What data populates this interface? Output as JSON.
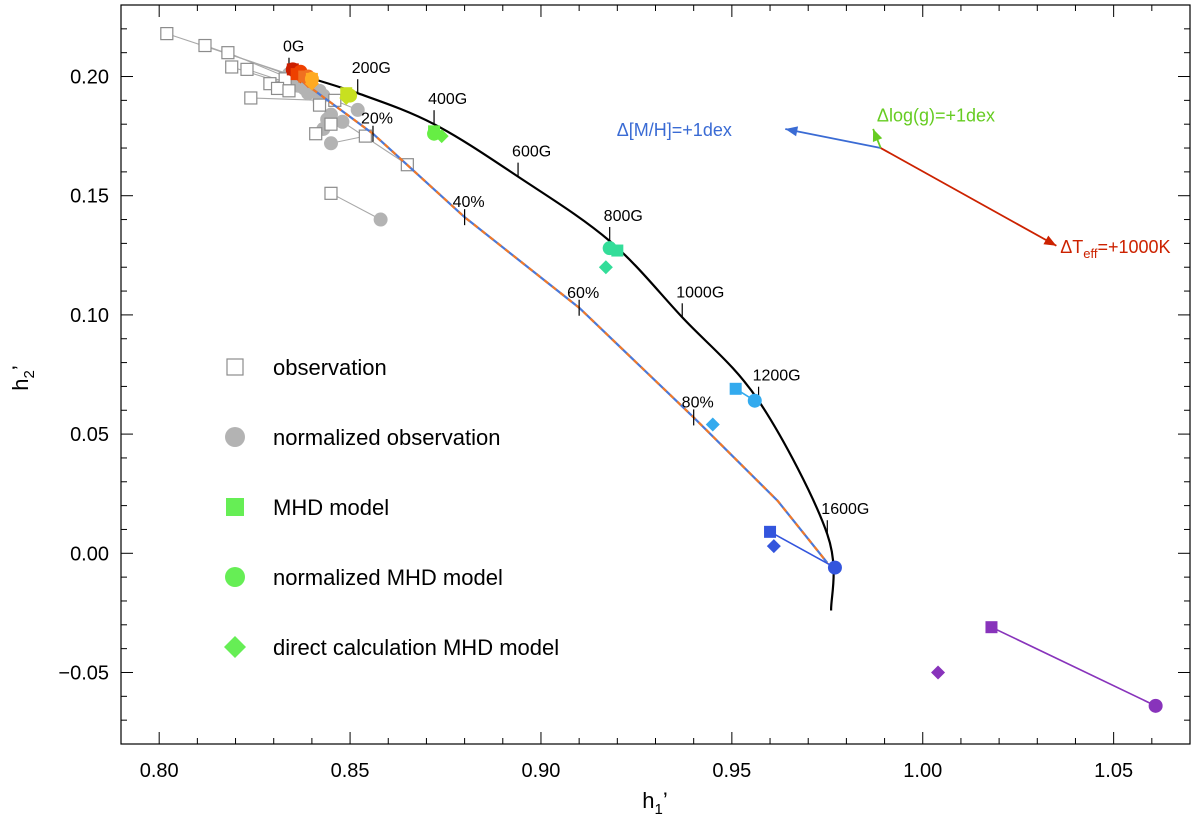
{
  "chart_data": {
    "type": "scatter",
    "xlabel": "h",
    "xlabel_sub": "1",
    "xlabel_prime": "’",
    "ylabel": "h",
    "ylabel_sub": "2",
    "ylabel_prime": "’",
    "xlim": [
      0.79,
      1.07
    ],
    "ylim": [
      -0.08,
      0.23
    ],
    "xticks": [
      0.8,
      0.85,
      0.9,
      0.95,
      1.0,
      1.05
    ],
    "xtick_labels": [
      "0.80",
      "0.85",
      "0.90",
      "0.95",
      "1.00",
      "1.05"
    ],
    "yticks": [
      -0.05,
      0.0,
      0.05,
      0.1,
      0.15,
      0.2
    ],
    "ytick_labels": [
      "−0.05",
      "0.00",
      "0.05",
      "0.10",
      "0.15",
      "0.20"
    ],
    "colors": {
      "observation": "#8c8c8c",
      "normalized_observation": "#b3b3b3",
      "legend_green": "#66ee55",
      "field_curve": "#000000",
      "fill_curve_blue": "#4a78d8",
      "fill_curve_orange": "#f07828",
      "arrow_metal": "#3a6bd4",
      "arrow_logg": "#66cc22",
      "arrow_teff": "#cc2200"
    },
    "observation_pairs": [
      {
        "obs": [
          0.802,
          0.218
        ],
        "norm": [
          0.834,
          0.201
        ]
      },
      {
        "obs": [
          0.812,
          0.213
        ],
        "norm": [
          0.835,
          0.2
        ]
      },
      {
        "obs": [
          0.818,
          0.21
        ],
        "norm": [
          0.836,
          0.198
        ]
      },
      {
        "obs": [
          0.819,
          0.204
        ],
        "norm": [
          0.835,
          0.196
        ]
      },
      {
        "obs": [
          0.823,
          0.203
        ],
        "norm": [
          0.838,
          0.195
        ]
      },
      {
        "obs": [
          0.829,
          0.197
        ],
        "norm": [
          0.839,
          0.193
        ]
      },
      {
        "obs": [
          0.833,
          0.199
        ],
        "norm": [
          0.84,
          0.196
        ]
      },
      {
        "obs": [
          0.831,
          0.195
        ],
        "norm": [
          0.842,
          0.194
        ]
      },
      {
        "obs": [
          0.834,
          0.194
        ],
        "norm": [
          0.843,
          0.192
        ]
      },
      {
        "obs": [
          0.824,
          0.191
        ],
        "norm": [
          0.842,
          0.19
        ]
      },
      {
        "obs": [
          0.846,
          0.19
        ],
        "norm": [
          0.852,
          0.186
        ]
      },
      {
        "obs": [
          0.842,
          0.188
        ],
        "norm": [
          0.845,
          0.184
        ]
      },
      {
        "obs": [
          0.841,
          0.176
        ],
        "norm": [
          0.843,
          0.178
        ]
      },
      {
        "obs": [
          0.845,
          0.18
        ],
        "norm": [
          0.844,
          0.182
        ]
      },
      {
        "obs": [
          0.854,
          0.175
        ],
        "norm": [
          0.845,
          0.172
        ]
      },
      {
        "obs": [
          0.865,
          0.163
        ],
        "norm": [
          0.848,
          0.181
        ]
      },
      {
        "obs": [
          0.845,
          0.151
        ],
        "norm": [
          0.858,
          0.14
        ]
      }
    ],
    "field_curve_label_points": [
      {
        "label": "0G",
        "x": 0.834,
        "y": 0.202
      },
      {
        "label": "200G",
        "x": 0.852,
        "y": 0.193
      },
      {
        "label": "400G",
        "x": 0.872,
        "y": 0.18
      },
      {
        "label": "600G",
        "x": 0.894,
        "y": 0.158
      },
      {
        "label": "800G",
        "x": 0.918,
        "y": 0.131
      },
      {
        "label": "1000G",
        "x": 0.937,
        "y": 0.099
      },
      {
        "label": "1200G",
        "x": 0.957,
        "y": 0.064
      },
      {
        "label": "1600G",
        "x": 0.975,
        "y": 0.008
      }
    ],
    "field_curve_end": [
      0.976,
      -0.024
    ],
    "fill_curve": [
      [
        0.834,
        0.202
      ],
      [
        0.856,
        0.176
      ],
      [
        0.88,
        0.141
      ],
      [
        0.91,
        0.103
      ],
      [
        0.94,
        0.057
      ],
      [
        0.962,
        0.022
      ],
      [
        0.975,
        -0.004
      ]
    ],
    "fill_tick_labels": [
      {
        "label": "20%",
        "x": 0.856,
        "y": 0.176
      },
      {
        "label": "40%",
        "x": 0.88,
        "y": 0.141
      },
      {
        "label": "60%",
        "x": 0.91,
        "y": 0.103
      },
      {
        "label": "80%",
        "x": 0.94,
        "y": 0.057
      }
    ],
    "models": [
      {
        "color": "#cc1f00",
        "mhd": [
          0.835,
          0.203
        ],
        "norm": [
          0.835,
          0.203
        ],
        "direct": [
          0.835,
          0.202
        ]
      },
      {
        "color": "#ee4000",
        "mhd": [
          0.836,
          0.201
        ],
        "norm": [
          0.837,
          0.202
        ],
        "direct": [
          0.837,
          0.2
        ]
      },
      {
        "color": "#f07020",
        "mhd": [
          0.838,
          0.2
        ],
        "norm": [
          0.839,
          0.2
        ],
        "direct": [
          0.839,
          0.198
        ]
      },
      {
        "color": "#ffaa22",
        "mhd": [
          0.84,
          0.199
        ],
        "norm": [
          0.84,
          0.199
        ],
        "direct": [
          0.84,
          0.197
        ]
      },
      {
        "color": "#c8e020",
        "mhd": [
          0.849,
          0.193
        ],
        "norm": [
          0.85,
          0.192
        ],
        "direct": [
          0.849,
          0.191
        ]
      },
      {
        "color": "#66ee44",
        "mhd": [
          0.872,
          0.177
        ],
        "norm": [
          0.872,
          0.176
        ],
        "direct": [
          0.874,
          0.175
        ]
      },
      {
        "color": "#33dd99",
        "mhd": [
          0.92,
          0.127
        ],
        "norm": [
          0.918,
          0.128
        ],
        "direct": [
          0.917,
          0.12
        ]
      },
      {
        "color": "#33aaee",
        "mhd": [
          0.951,
          0.069
        ],
        "norm": [
          0.956,
          0.064
        ],
        "direct": [
          0.945,
          0.054
        ]
      },
      {
        "color": "#3355dd",
        "mhd": [
          0.96,
          0.009
        ],
        "norm": [
          0.977,
          -0.006
        ],
        "direct": [
          0.961,
          0.003
        ]
      },
      {
        "color": "#8833bb",
        "mhd": [
          1.018,
          -0.031
        ],
        "norm": [
          1.061,
          -0.064
        ],
        "direct": [
          1.004,
          -0.05
        ]
      }
    ],
    "sensitivity_origin": [
      0.989,
      0.17
    ],
    "sensitivity_arrows": [
      {
        "name": "metal",
        "to": [
          0.964,
          0.178
        ],
        "label": "Δ[M/H]=+1dex",
        "label_at": [
          0.95,
          0.178
        ],
        "anchor": "end"
      },
      {
        "name": "logg",
        "to": [
          0.987,
          0.178
        ],
        "label": "Δlog(g)=+1dex",
        "label_at": [
          0.988,
          0.184
        ],
        "anchor": "start"
      },
      {
        "name": "teff",
        "to": [
          1.035,
          0.129
        ],
        "label_main": "ΔT",
        "label_sub": "eff",
        "label_tail": "=+1000K",
        "label_at": [
          1.036,
          0.129
        ],
        "anchor": "start"
      }
    ],
    "legend": [
      {
        "marker": "open-square",
        "label": "observation"
      },
      {
        "marker": "circle",
        "label": "normalized observation"
      },
      {
        "marker": "square",
        "label": "MHD model"
      },
      {
        "marker": "circle-green",
        "label": "normalized MHD model"
      },
      {
        "marker": "diamond",
        "label": "direct calculation MHD model"
      }
    ]
  }
}
